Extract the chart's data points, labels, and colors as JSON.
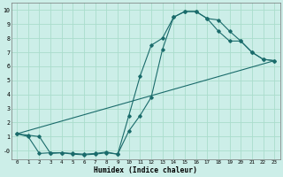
{
  "xlabel": "Humidex (Indice chaleur)",
  "ylabel": "",
  "bg_color": "#cceee8",
  "grid_color": "#aaddcc",
  "line_color": "#1a6b6b",
  "xlim": [
    -0.5,
    23.5
  ],
  "ylim": [
    -0.6,
    10.5
  ],
  "xticks": [
    0,
    1,
    2,
    3,
    4,
    5,
    6,
    7,
    8,
    9,
    10,
    11,
    12,
    13,
    14,
    15,
    16,
    17,
    18,
    19,
    20,
    21,
    22,
    23
  ],
  "yticks": [
    0,
    1,
    2,
    3,
    4,
    5,
    6,
    7,
    8,
    9,
    10
  ],
  "ytick_labels": [
    "-0",
    "1",
    "2",
    "3",
    "4",
    "5",
    "6",
    "7",
    "8",
    "9",
    "10"
  ],
  "curve1_x": [
    0,
    1,
    2,
    3,
    4,
    5,
    6,
    7,
    8,
    9,
    10,
    11,
    12,
    13,
    14,
    15,
    16,
    17,
    18,
    19,
    20,
    21,
    22,
    23
  ],
  "curve1_y": [
    1.2,
    1.1,
    1.0,
    -0.2,
    -0.15,
    -0.2,
    -0.25,
    -0.2,
    -0.1,
    -0.25,
    2.5,
    5.3,
    7.5,
    8.0,
    9.5,
    9.9,
    9.9,
    9.4,
    9.3,
    8.5,
    7.8,
    7.0,
    6.5,
    6.4
  ],
  "curve2_x": [
    0,
    1,
    2,
    3,
    4,
    5,
    6,
    7,
    8,
    9,
    10,
    11,
    12,
    13,
    14,
    15,
    16,
    17,
    18,
    19,
    20,
    21,
    22,
    23
  ],
  "curve2_y": [
    1.2,
    1.0,
    -0.2,
    -0.15,
    -0.15,
    -0.25,
    -0.3,
    -0.25,
    -0.15,
    -0.25,
    1.4,
    2.5,
    3.8,
    7.2,
    9.5,
    9.9,
    9.9,
    9.4,
    8.5,
    7.8,
    7.8,
    7.0,
    6.5,
    6.4
  ],
  "curve3_x": [
    0,
    23
  ],
  "curve3_y": [
    1.2,
    6.4
  ]
}
